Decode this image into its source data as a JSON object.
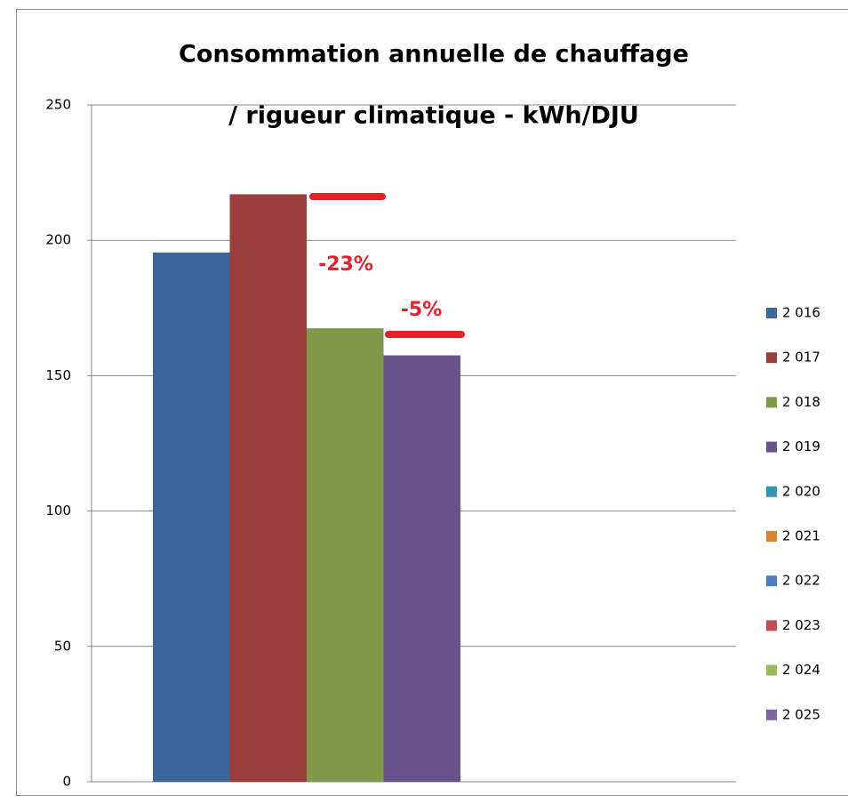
{
  "chart_data": {
    "type": "bar",
    "title": [
      "Consommation annuelle de chauffage",
      "/ rigueur climatique - kWh/DJU"
    ],
    "categories": [
      null
    ],
    "series": [
      {
        "name": "2 016",
        "color": "#3d6597",
        "values": [
          195.5
        ]
      },
      {
        "name": "2 017",
        "color": "#9b3e3b",
        "values": [
          217
        ]
      },
      {
        "name": "2 018",
        "color": "#7e9a48",
        "values": [
          167.5
        ]
      },
      {
        "name": "2 019",
        "color": "#67528a",
        "values": [
          157.5
        ]
      },
      {
        "name": "2 020",
        "color": "#3196b0",
        "values": [
          null
        ]
      },
      {
        "name": "2 021",
        "color": "#d9822f",
        "values": [
          null
        ]
      },
      {
        "name": "2 022",
        "color": "#4a7ec0",
        "values": [
          null
        ]
      },
      {
        "name": "2 023",
        "color": "#c0504d",
        "values": [
          null
        ]
      },
      {
        "name": "2 024",
        "color": "#9bbb59",
        "values": [
          null
        ]
      },
      {
        "name": "2 025",
        "color": "#8064a2",
        "values": [
          null
        ]
      }
    ],
    "ylim": [
      0,
      250
    ],
    "yticks": [
      0,
      50,
      100,
      150,
      200,
      250
    ],
    "grid": true,
    "legend": "right",
    "annotations": [
      {
        "text": "-23%"
      },
      {
        "text": "-5%"
      }
    ]
  }
}
